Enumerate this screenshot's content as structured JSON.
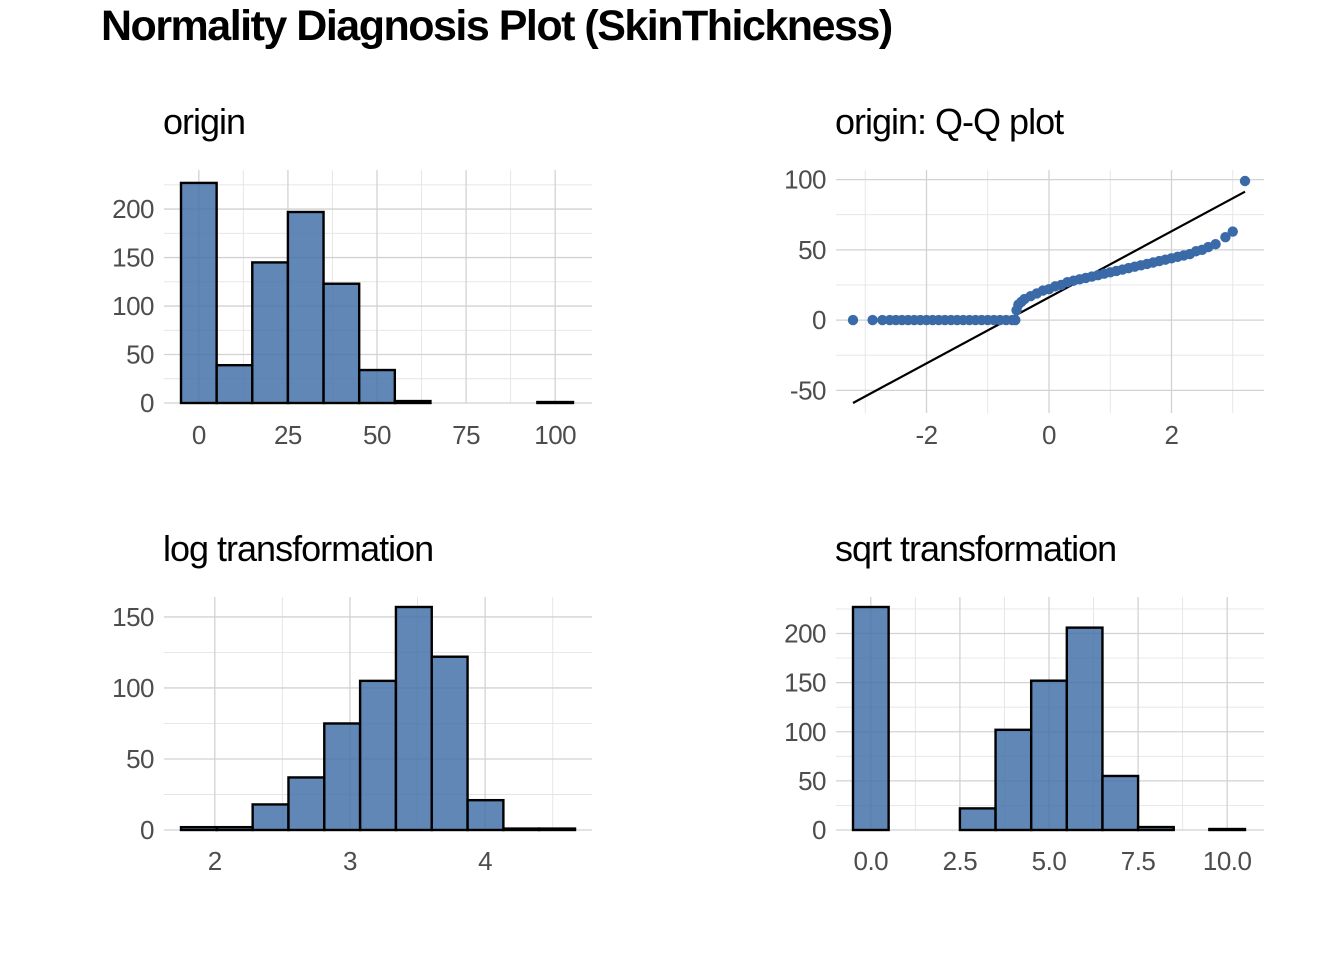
{
  "title": "Normality Diagnosis Plot (SkinThickness)",
  "colors": {
    "fill": "#4472a8",
    "point": "#3a6aa7",
    "line": "#000000"
  },
  "chart_data": [
    {
      "type": "bar",
      "title": "origin",
      "xlim": [
        -5,
        105
      ],
      "ylim": [
        0,
        230
      ],
      "xticks": [
        0,
        25,
        50,
        75,
        100
      ],
      "xtick_labels": [
        "0",
        "25",
        "50",
        "75",
        "100"
      ],
      "yticks": [
        0,
        50,
        100,
        150,
        200
      ],
      "ytick_labels": [
        "0",
        "50",
        "100",
        "150",
        "200"
      ],
      "bins": [
        {
          "x0": -5,
          "x1": 5,
          "value": 227
        },
        {
          "x0": 5,
          "x1": 15,
          "value": 39
        },
        {
          "x0": 15,
          "x1": 25,
          "value": 145
        },
        {
          "x0": 25,
          "x1": 35,
          "value": 197
        },
        {
          "x0": 35,
          "x1": 45,
          "value": 123
        },
        {
          "x0": 45,
          "x1": 55,
          "value": 34
        },
        {
          "x0": 55,
          "x1": 65,
          "value": 2
        },
        {
          "x0": 65,
          "x1": 75,
          "value": 0
        },
        {
          "x0": 75,
          "x1": 85,
          "value": 0
        },
        {
          "x0": 85,
          "x1": 95,
          "value": 0
        },
        {
          "x0": 95,
          "x1": 105,
          "value": 1
        }
      ]
    },
    {
      "type": "scatter",
      "title": "origin: Q-Q plot",
      "xlim": [
        -3.2,
        3.2
      ],
      "ylim": [
        -59,
        99
      ],
      "xticks": [
        -2,
        0,
        2
      ],
      "xtick_labels": [
        "-2",
        "0",
        "2"
      ],
      "yticks": [
        -50,
        0,
        50,
        100
      ],
      "ytick_labels": [
        "-50",
        "0",
        "50",
        "100"
      ],
      "reference_line": {
        "x": [
          -3.2,
          3.2
        ],
        "y": [
          -59,
          91.4
        ]
      },
      "points": [
        [
          -3.2,
          0
        ],
        [
          -2.88,
          0
        ],
        [
          -2.72,
          0
        ],
        [
          -2.6,
          0
        ],
        [
          -2.5,
          0
        ],
        [
          -2.4,
          0
        ],
        [
          -2.3,
          0
        ],
        [
          -2.2,
          0
        ],
        [
          -2.1,
          0
        ],
        [
          -2.0,
          0
        ],
        [
          -1.9,
          0
        ],
        [
          -1.8,
          0
        ],
        [
          -1.7,
          0
        ],
        [
          -1.6,
          0
        ],
        [
          -1.5,
          0
        ],
        [
          -1.4,
          0
        ],
        [
          -1.3,
          0
        ],
        [
          -1.2,
          0
        ],
        [
          -1.1,
          0
        ],
        [
          -1.0,
          0
        ],
        [
          -0.9,
          0
        ],
        [
          -0.8,
          0
        ],
        [
          -0.7,
          0
        ],
        [
          -0.6,
          0
        ],
        [
          -0.55,
          0
        ],
        [
          -0.53,
          7
        ],
        [
          -0.5,
          11
        ],
        [
          -0.45,
          13
        ],
        [
          -0.4,
          15
        ],
        [
          -0.3,
          17
        ],
        [
          -0.2,
          19
        ],
        [
          -0.1,
          21
        ],
        [
          0.0,
          22
        ],
        [
          0.1,
          24
        ],
        [
          0.2,
          25
        ],
        [
          0.3,
          27
        ],
        [
          0.4,
          28
        ],
        [
          0.5,
          29
        ],
        [
          0.6,
          30
        ],
        [
          0.7,
          31
        ],
        [
          0.8,
          32
        ],
        [
          0.9,
          33
        ],
        [
          1.0,
          34
        ],
        [
          1.1,
          35
        ],
        [
          1.2,
          36
        ],
        [
          1.3,
          37
        ],
        [
          1.4,
          38
        ],
        [
          1.5,
          39
        ],
        [
          1.6,
          40
        ],
        [
          1.7,
          41
        ],
        [
          1.8,
          42
        ],
        [
          1.9,
          43
        ],
        [
          2.0,
          44
        ],
        [
          2.1,
          45
        ],
        [
          2.2,
          46
        ],
        [
          2.3,
          47
        ],
        [
          2.4,
          49
        ],
        [
          2.5,
          50
        ],
        [
          2.6,
          52
        ],
        [
          2.72,
          54
        ],
        [
          2.88,
          59
        ],
        [
          3.0,
          63
        ],
        [
          3.2,
          99
        ]
      ]
    },
    {
      "type": "bar",
      "title": "log transformation",
      "xlim": [
        1.75,
        4.65
      ],
      "ylim": [
        0,
        157
      ],
      "xticks": [
        2,
        3,
        4
      ],
      "xtick_labels": [
        "2",
        "3",
        "4"
      ],
      "yticks": [
        0,
        50,
        100,
        150
      ],
      "ytick_labels": [
        "0",
        "50",
        "100",
        "150"
      ],
      "bins": [
        {
          "x0": 1.75,
          "x1": 2.015,
          "value": 2
        },
        {
          "x0": 2.015,
          "x1": 2.28,
          "value": 2
        },
        {
          "x0": 2.28,
          "x1": 2.545,
          "value": 18
        },
        {
          "x0": 2.545,
          "x1": 2.81,
          "value": 37
        },
        {
          "x0": 2.81,
          "x1": 3.075,
          "value": 75
        },
        {
          "x0": 3.075,
          "x1": 3.34,
          "value": 105
        },
        {
          "x0": 3.34,
          "x1": 3.605,
          "value": 157
        },
        {
          "x0": 3.605,
          "x1": 3.87,
          "value": 122
        },
        {
          "x0": 3.87,
          "x1": 4.135,
          "value": 21
        },
        {
          "x0": 4.135,
          "x1": 4.4,
          "value": 1
        },
        {
          "x0": 4.4,
          "x1": 4.665,
          "value": 1
        }
      ]
    },
    {
      "type": "bar",
      "title": "sqrt transformation",
      "xlim": [
        -0.5,
        10.5
      ],
      "ylim": [
        0,
        227
      ],
      "xticks": [
        0,
        2.5,
        5,
        7.5,
        10
      ],
      "xtick_labels": [
        "0.0",
        "2.5",
        "5.0",
        "7.5",
        "10.0"
      ],
      "yticks": [
        0,
        50,
        100,
        150,
        200
      ],
      "ytick_labels": [
        "0",
        "50",
        "100",
        "150",
        "200"
      ],
      "bins": [
        {
          "x0": -0.5,
          "x1": 0.5,
          "value": 227
        },
        {
          "x0": 0.5,
          "x1": 1.5,
          "value": 0
        },
        {
          "x0": 1.5,
          "x1": 2.5,
          "value": 0
        },
        {
          "x0": 2.5,
          "x1": 3.5,
          "value": 22
        },
        {
          "x0": 3.5,
          "x1": 4.5,
          "value": 102
        },
        {
          "x0": 4.5,
          "x1": 5.5,
          "value": 152
        },
        {
          "x0": 5.5,
          "x1": 6.5,
          "value": 206
        },
        {
          "x0": 6.5,
          "x1": 7.5,
          "value": 55
        },
        {
          "x0": 7.5,
          "x1": 8.5,
          "value": 3
        },
        {
          "x0": 8.5,
          "x1": 9.5,
          "value": 0
        },
        {
          "x0": 9.5,
          "x1": 10.5,
          "value": 1
        }
      ]
    }
  ]
}
